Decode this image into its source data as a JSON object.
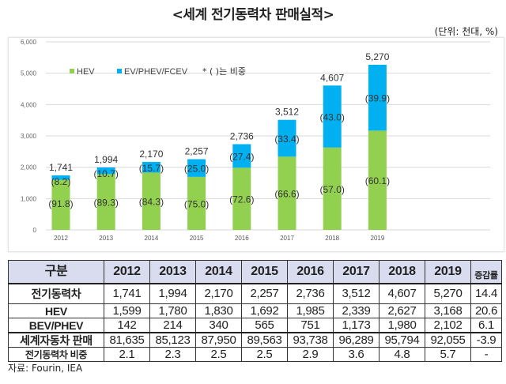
{
  "title": "<세계 전기동력차 판매실적>",
  "unit": "(단위: 천대, %)",
  "chart_data": {
    "type": "bar",
    "stacked": true,
    "categories": [
      "2012",
      "2013",
      "2014",
      "2015",
      "2016",
      "2017",
      "2018",
      "2019"
    ],
    "series": [
      {
        "name": "HEV",
        "values": [
          1599,
          1780,
          1830,
          1692,
          1985,
          2339,
          2627,
          3168
        ],
        "share_labels": [
          "(91.8)",
          "(89.3)",
          "(84.3)",
          "(75.0)",
          "(72.6)",
          "(66.6)",
          "(57.0)",
          "(60.1)"
        ],
        "color": "#92d050"
      },
      {
        "name": "EV/PHEV/FCEV",
        "values": [
          142,
          214,
          340,
          565,
          751,
          1173,
          1980,
          2102
        ],
        "share_labels": [
          "(8.2)",
          "(10.7)",
          "(15.7)",
          "(25.0)",
          "(27.4)",
          "(33.4)",
          "(43.0)",
          "(39.9)"
        ],
        "color": "#00b0f0"
      }
    ],
    "totals": [
      "1,741",
      "1,994",
      "2,170",
      "2,257",
      "2,736",
      "3,512",
      "4,607",
      "5,270"
    ],
    "total_values": [
      1741,
      1994,
      2170,
      2257,
      2736,
      3512,
      4607,
      5270
    ],
    "yticks": [
      "0",
      "1,000",
      "2,000",
      "3,000",
      "4,000",
      "5,000",
      "6,000"
    ],
    "ylim": [
      0,
      6000
    ],
    "grid": true,
    "legend_note": "* ( )는 비중",
    "legend_position": "top-left"
  },
  "table": {
    "header": [
      "구분",
      "2012",
      "2013",
      "2014",
      "2015",
      "2016",
      "2017",
      "2018",
      "2019",
      "증감률"
    ],
    "rows": [
      [
        "전기동력차",
        "1,741",
        "1,994",
        "2,170",
        "2,257",
        "2,736",
        "3,512",
        "4,607",
        "5,270",
        "14.4"
      ],
      [
        "HEV",
        "1,599",
        "1,780",
        "1,830",
        "1,692",
        "1,985",
        "2,339",
        "2,627",
        "3,168",
        "20.6"
      ],
      [
        "BEV/PHEV",
        "142",
        "214",
        "340",
        "565",
        "751",
        "1,173",
        "1,980",
        "2,102",
        "6.1"
      ],
      [
        "세계자동차 판매",
        "81,635",
        "85,123",
        "87,950",
        "89,563",
        "93,738",
        "96,289",
        "95,794",
        "92,055",
        "-3.9"
      ],
      [
        "전기동력차 비중",
        "2.1",
        "2.3",
        "2.5",
        "2.5",
        "2.9",
        "3.6",
        "4.8",
        "5.7",
        "-"
      ]
    ]
  },
  "source": "자료: Fourin, IEA"
}
